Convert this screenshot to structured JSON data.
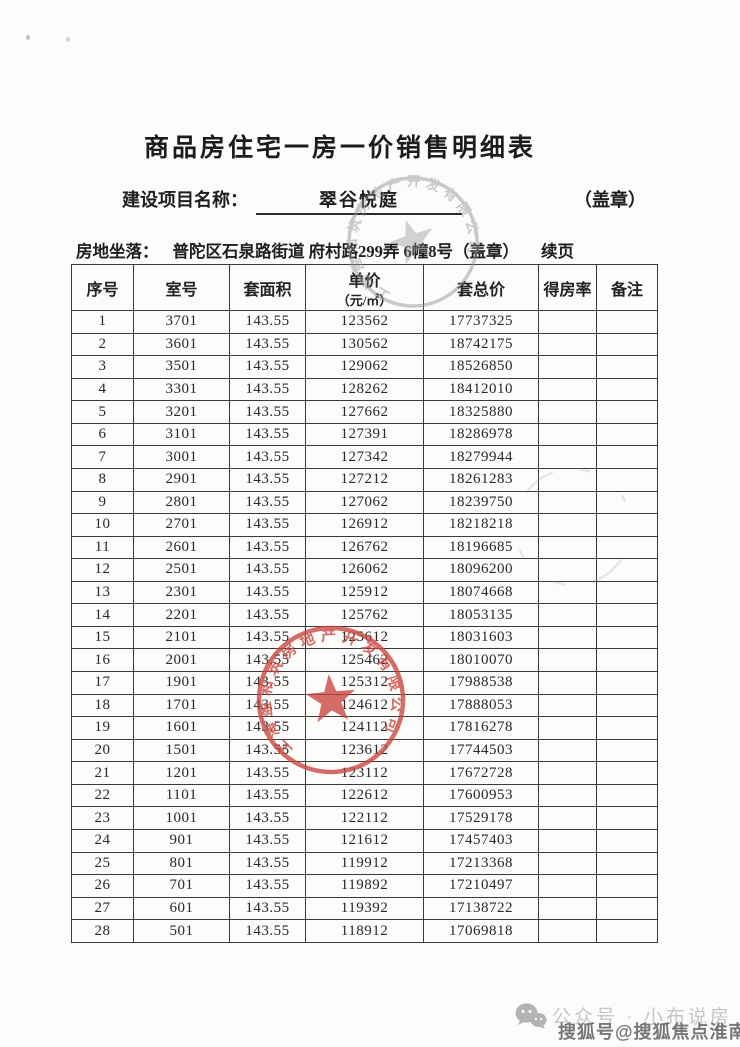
{
  "page": {
    "title": "商品房住宅一房一价销售明细表",
    "project_label": "建设项目名称：",
    "project_name": "翠谷悦庭",
    "seal_note": "（盖章）",
    "location_label": "房地坐落：",
    "location_value": "普陀区石泉路街道 府村路299弄 6幢8号（盖章）",
    "continuation": "续页"
  },
  "table": {
    "col_keys": [
      "index",
      "room",
      "area",
      "unit-price",
      "total-price",
      "ratio",
      "note"
    ],
    "headers": [
      {
        "label": "序号"
      },
      {
        "label": "室号"
      },
      {
        "label": "套面积"
      },
      {
        "label": "单价",
        "sub": "（元/㎡）"
      },
      {
        "label": "套总价"
      },
      {
        "label": "得房率"
      },
      {
        "label": "备注"
      }
    ],
    "rows": [
      [
        "1",
        "3701",
        "143.55",
        "123562",
        "17737325",
        "",
        ""
      ],
      [
        "2",
        "3601",
        "143.55",
        "130562",
        "18742175",
        "",
        ""
      ],
      [
        "3",
        "3501",
        "143.55",
        "129062",
        "18526850",
        "",
        ""
      ],
      [
        "4",
        "3301",
        "143.55",
        "128262",
        "18412010",
        "",
        ""
      ],
      [
        "5",
        "3201",
        "143.55",
        "127662",
        "18325880",
        "",
        ""
      ],
      [
        "6",
        "3101",
        "143.55",
        "127391",
        "18286978",
        "",
        ""
      ],
      [
        "7",
        "3001",
        "143.55",
        "127342",
        "18279944",
        "",
        ""
      ],
      [
        "8",
        "2901",
        "143.55",
        "127212",
        "18261283",
        "",
        ""
      ],
      [
        "9",
        "2801",
        "143.55",
        "127062",
        "18239750",
        "",
        ""
      ],
      [
        "10",
        "2701",
        "143.55",
        "126912",
        "18218218",
        "",
        ""
      ],
      [
        "11",
        "2601",
        "143.55",
        "126762",
        "18196685",
        "",
        ""
      ],
      [
        "12",
        "2501",
        "143.55",
        "126062",
        "18096200",
        "",
        ""
      ],
      [
        "13",
        "2301",
        "143.55",
        "125912",
        "18074668",
        "",
        ""
      ],
      [
        "14",
        "2201",
        "143.55",
        "125762",
        "18053135",
        "",
        ""
      ],
      [
        "15",
        "2101",
        "143.55",
        "125612",
        "18031603",
        "",
        ""
      ],
      [
        "16",
        "2001",
        "143.55",
        "125462",
        "18010070",
        "",
        ""
      ],
      [
        "17",
        "1901",
        "143.55",
        "125312",
        "17988538",
        "",
        ""
      ],
      [
        "18",
        "1701",
        "143.55",
        "124612",
        "17888053",
        "",
        ""
      ],
      [
        "19",
        "1601",
        "143.55",
        "124112",
        "17816278",
        "",
        ""
      ],
      [
        "20",
        "1501",
        "143.55",
        "123612",
        "17744503",
        "",
        ""
      ],
      [
        "21",
        "1201",
        "143.55",
        "123112",
        "17672728",
        "",
        ""
      ],
      [
        "22",
        "1101",
        "143.55",
        "122612",
        "17600953",
        "",
        ""
      ],
      [
        "23",
        "1001",
        "143.55",
        "122112",
        "17529178",
        "",
        ""
      ],
      [
        "24",
        "901",
        "143.55",
        "121612",
        "17457403",
        "",
        ""
      ],
      [
        "25",
        "801",
        "143.55",
        "119912",
        "17213368",
        "",
        ""
      ],
      [
        "26",
        "701",
        "143.55",
        "119892",
        "17210497",
        "",
        ""
      ],
      [
        "27",
        "601",
        "143.55",
        "119392",
        "17138722",
        "",
        ""
      ],
      [
        "28",
        "501",
        "143.55",
        "118912",
        "17069818",
        "",
        ""
      ]
    ]
  },
  "stamps": {
    "ring_text": "上海盈和筑房地产开发有限公司"
  },
  "watermark": {
    "wechat_label": "公众号 · 小布说房",
    "sohu_label": "搜狐号@搜狐焦点淮南站"
  },
  "colors": {
    "stamp_red": "#c9453e",
    "stamp_gray": "#939393",
    "border_dark": "#3a3a3a",
    "watermark_light": "#c6c6c6",
    "watermark_dark": "#767676"
  }
}
